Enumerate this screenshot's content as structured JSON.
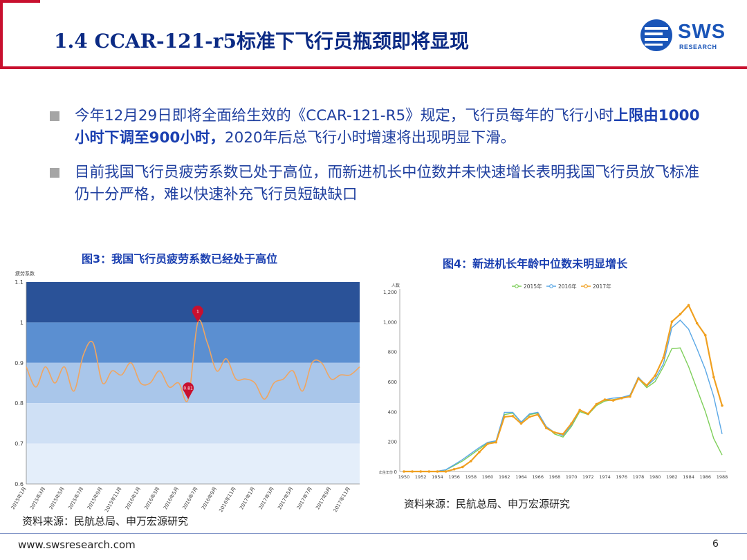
{
  "header": {
    "title": "1.4 CCAR-121-r5标准下飞行员瓶颈即将显现",
    "logo_text": "SWS",
    "logo_sub": "RESEARCH",
    "colors": {
      "navy": "#0b2a84",
      "red": "#c8102e",
      "blue": "#1a55b8"
    }
  },
  "bullets": [
    {
      "text_before": "今年12月29日即将全面给生效的《CCAR-121-R5》规定，飞行员每年的飞行小时",
      "bold": "上限由1000小时下调至900小时，",
      "text_after": "2020年后总飞行小时增速将出现明显下滑。"
    },
    {
      "text_before": "目前我国飞行员疲劳系数已处于高位，而新进机长中位数并未快速增长表明我国飞行员放飞标准仍十分严格，难以快速补充飞行员短缺缺口",
      "bold": "",
      "text_after": ""
    }
  ],
  "fig3": {
    "title": "图3：我国飞行员疲劳系数已经处于高位",
    "source": "资料来源：民航总局、申万宏源研究",
    "chart_data": {
      "type": "line",
      "title": "",
      "ylabel": "疲劳系数",
      "ylim": [
        0.6,
        1.1
      ],
      "yticks": [
        "0.6",
        "0.7",
        "0.8",
        "0.9",
        "1",
        "1.1"
      ],
      "xticks": [
        "2015年1月",
        "2015年3月",
        "2015年5月",
        "2015年7月",
        "2015年9月",
        "2015年11月",
        "2016年1月",
        "2016年3月",
        "2016年5月",
        "2016年7月",
        "2016年9月",
        "2016年11月",
        "2017年1月",
        "2017年3月",
        "2017年5月",
        "2017年7月",
        "2017年9月",
        "2017年11月"
      ],
      "bands": [
        {
          "from": 1.0,
          "to": 1.1,
          "color": "#2a5298"
        },
        {
          "from": 0.9,
          "to": 1.0,
          "color": "#5b8fd1"
        },
        {
          "from": 0.8,
          "to": 0.9,
          "color": "#a9c6ea"
        },
        {
          "from": 0.7,
          "to": 0.8,
          "color": "#cfe0f5"
        },
        {
          "from": 0.6,
          "to": 0.7,
          "color": "#e4eefa"
        }
      ],
      "series": [
        {
          "color": "#f0a560",
          "x": [
            0,
            1,
            2,
            3,
            4,
            5,
            6,
            7,
            8,
            9,
            10,
            11,
            12,
            13,
            14,
            15,
            16,
            17,
            18,
            19,
            20,
            21,
            22,
            23,
            24,
            25,
            26,
            27,
            28,
            29,
            30,
            31,
            32,
            33,
            34,
            35
          ],
          "values": [
            0.89,
            0.84,
            0.89,
            0.85,
            0.89,
            0.83,
            0.92,
            0.95,
            0.85,
            0.88,
            0.87,
            0.9,
            0.85,
            0.85,
            0.88,
            0.84,
            0.85,
            0.81,
            1.0,
            0.95,
            0.88,
            0.91,
            0.86,
            0.86,
            0.85,
            0.81,
            0.85,
            0.86,
            0.88,
            0.83,
            0.9,
            0.9,
            0.86,
            0.87,
            0.87,
            0.89
          ]
        }
      ],
      "markers": [
        {
          "x": 17,
          "value": 0.81,
          "label": "0.81",
          "color": "#c8102e"
        },
        {
          "x": 18,
          "value": 1.0,
          "label": "1",
          "color": "#c8102e"
        }
      ]
    }
  },
  "fig4": {
    "title": "图4：新进机长年龄中位数未明显增长",
    "source": "资料来源：民航总局、申万宏源研究",
    "chart_data": {
      "type": "line",
      "title": "",
      "ylabel": "人数",
      "xlabel": "出生年份",
      "ylim": [
        0,
        1200
      ],
      "yticks": [
        "0",
        "200",
        "400",
        "600",
        "800",
        "1,000",
        "1,200"
      ],
      "xticks": [
        "1950",
        "1952",
        "1954",
        "1956",
        "1958",
        "1960",
        "1962",
        "1964",
        "1966",
        "1968",
        "1970",
        "1972",
        "1974",
        "1976",
        "1978",
        "1980",
        "1982",
        "1984",
        "1986",
        "1988"
      ],
      "x": [
        1950,
        1951,
        1952,
        1953,
        1954,
        1955,
        1956,
        1957,
        1958,
        1959,
        1960,
        1961,
        1962,
        1963,
        1964,
        1965,
        1966,
        1967,
        1968,
        1969,
        1970,
        1971,
        1972,
        1973,
        1974,
        1975,
        1976,
        1977,
        1978,
        1979,
        1980,
        1981,
        1982,
        1983,
        1984,
        1985,
        1986,
        1987,
        1988
      ],
      "series": [
        {
          "name": "2015年",
          "color": "#7ecf5a",
          "values": [
            0,
            0,
            0,
            0,
            2,
            10,
            40,
            70,
            110,
            150,
            190,
            200,
            380,
            390,
            330,
            380,
            390,
            300,
            250,
            230,
            300,
            400,
            380,
            440,
            470,
            480,
            490,
            510,
            620,
            560,
            600,
            700,
            820,
            825,
            700,
            550,
            400,
            220,
            110
          ]
        },
        {
          "name": "2016年",
          "color": "#5ba8e6",
          "values": [
            0,
            0,
            0,
            0,
            2,
            12,
            45,
            80,
            120,
            160,
            195,
            205,
            395,
            395,
            330,
            385,
            395,
            300,
            260,
            240,
            310,
            410,
            385,
            450,
            480,
            490,
            495,
            510,
            630,
            570,
            620,
            720,
            960,
            1010,
            950,
            820,
            680,
            500,
            250
          ]
        },
        {
          "name": "2017年",
          "color": "#f0a020",
          "values": [
            0,
            0,
            0,
            0,
            0,
            0,
            15,
            30,
            70,
            130,
            185,
            195,
            365,
            370,
            320,
            365,
            380,
            290,
            260,
            250,
            320,
            410,
            385,
            450,
            480,
            475,
            490,
            500,
            620,
            575,
            640,
            760,
            1000,
            1050,
            1110,
            990,
            910,
            630,
            440
          ]
        }
      ]
    }
  },
  "footer": {
    "url": "www.swsresearch.com",
    "page": "6"
  }
}
